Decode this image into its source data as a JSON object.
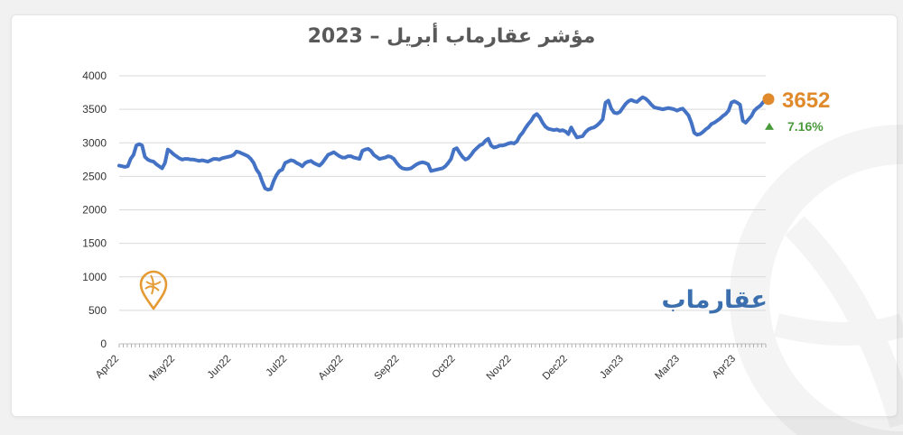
{
  "chart_data": {
    "type": "line",
    "title": "مؤشر عقارماب أبريل – 2023",
    "ylim": [
      0,
      4000
    ],
    "yticks": [
      0,
      500,
      1000,
      1500,
      2000,
      2500,
      3000,
      3500,
      4000
    ],
    "xticks": [
      "Apr22",
      "May22",
      "Jun22",
      "Jul22",
      "Aug22",
      "Sep22",
      "Oct22",
      "Nov22",
      "Dec22",
      "Jan23",
      "Mar23",
      "Apr23"
    ],
    "x_start_label": "Apr22",
    "x_end_label": "Apr23",
    "series": [
      {
        "color": "#4472c4",
        "values": [
          2660,
          2650,
          2640,
          2650,
          2760,
          2820,
          2960,
          2980,
          2960,
          2790,
          2750,
          2730,
          2720,
          2680,
          2650,
          2620,
          2700,
          2900,
          2870,
          2830,
          2800,
          2770,
          2750,
          2760,
          2760,
          2750,
          2750,
          2740,
          2730,
          2740,
          2730,
          2720,
          2740,
          2760,
          2760,
          2750,
          2770,
          2780,
          2790,
          2800,
          2820,
          2870,
          2860,
          2840,
          2820,
          2800,
          2760,
          2700,
          2600,
          2540,
          2420,
          2320,
          2300,
          2310,
          2430,
          2520,
          2580,
          2600,
          2700,
          2720,
          2740,
          2730,
          2700,
          2680,
          2650,
          2700,
          2720,
          2730,
          2700,
          2680,
          2660,
          2700,
          2760,
          2820,
          2840,
          2860,
          2830,
          2800,
          2780,
          2780,
          2800,
          2800,
          2780,
          2770,
          2760,
          2880,
          2900,
          2910,
          2880,
          2820,
          2790,
          2760,
          2770,
          2780,
          2800,
          2790,
          2760,
          2700,
          2650,
          2620,
          2610,
          2610,
          2620,
          2650,
          2680,
          2700,
          2710,
          2700,
          2680,
          2580,
          2590,
          2600,
          2610,
          2620,
          2650,
          2700,
          2760,
          2900,
          2920,
          2850,
          2790,
          2750,
          2770,
          2820,
          2880,
          2920,
          2960,
          2980,
          3030,
          3060,
          2960,
          2930,
          2940,
          2960,
          2960,
          2970,
          2990,
          3000,
          2990,
          3020,
          3100,
          3150,
          3220,
          3280,
          3330,
          3400,
          3430,
          3380,
          3300,
          3240,
          3210,
          3200,
          3190,
          3200,
          3180,
          3190,
          3170,
          3130,
          3230,
          3150,
          3080,
          3090,
          3100,
          3160,
          3200,
          3220,
          3230,
          3260,
          3300,
          3350,
          3600,
          3630,
          3510,
          3450,
          3440,
          3460,
          3520,
          3580,
          3620,
          3640,
          3620,
          3610,
          3650,
          3680,
          3660,
          3620,
          3570,
          3530,
          3520,
          3510,
          3500,
          3510,
          3520,
          3510,
          3500,
          3480,
          3500,
          3510,
          3460,
          3410,
          3300,
          3150,
          3120,
          3130,
          3160,
          3200,
          3230,
          3280,
          3300,
          3330,
          3360,
          3400,
          3430,
          3480,
          3600,
          3620,
          3600,
          3570,
          3330,
          3300,
          3350,
          3400,
          3480,
          3520,
          3550,
          3600,
          3652
        ]
      }
    ],
    "last_value": "3652",
    "change": "7.16%",
    "change_direction": "up",
    "colors": {
      "line": "#4472c4",
      "last_value": "#e08a2c",
      "change": "#4a9a3c",
      "brand": "#3b6fae",
      "pin": "#e59b34",
      "grid": "#d9d9d9",
      "title": "#595959"
    }
  },
  "brand": {
    "wordmark": "عقارماب",
    "pin_icon": "location-pin-icon"
  }
}
